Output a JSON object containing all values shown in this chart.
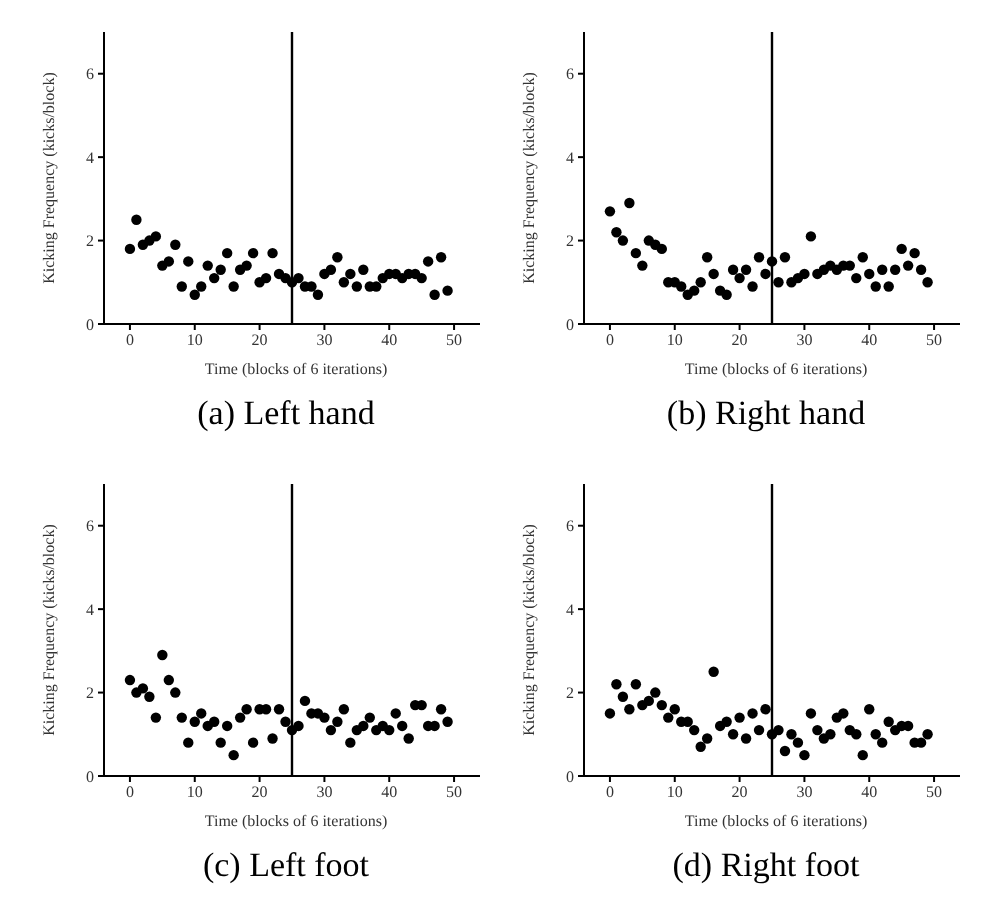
{
  "chart_data": [
    {
      "type": "scatter",
      "title": "(a) Left hand",
      "xlabel": "Time (blocks of 6 iterations)",
      "ylabel": "Kicking Frequency (kicks/block)",
      "x": [
        0,
        1,
        2,
        3,
        4,
        5,
        6,
        7,
        8,
        9,
        10,
        11,
        12,
        13,
        14,
        15,
        16,
        17,
        18,
        19,
        20,
        21,
        22,
        23,
        24,
        25,
        26,
        27,
        28,
        29,
        30,
        31,
        32,
        33,
        34,
        35,
        36,
        37,
        38,
        39,
        40,
        41,
        42,
        43,
        44,
        45,
        46,
        47,
        48,
        49
      ],
      "series": [
        {
          "color": "#000000",
          "values": [
            1.8,
            2.5,
            1.9,
            2.0,
            2.1,
            1.4,
            1.5,
            1.9,
            0.9,
            1.5,
            0.7,
            0.9,
            1.4,
            1.1,
            1.3,
            1.7,
            0.9,
            1.3,
            1.4,
            1.7,
            1.0,
            1.1,
            1.7,
            1.2,
            1.1,
            1.0,
            1.1,
            0.9,
            0.9,
            0.7,
            1.2,
            1.3,
            1.6,
            1.0,
            1.2,
            0.9,
            1.3,
            0.9,
            0.9,
            1.1,
            1.2,
            1.2,
            1.1,
            1.2,
            1.2,
            1.1,
            1.5,
            0.7,
            1.6,
            0.8
          ]
        }
      ],
      "xlim": [
        -4,
        54
      ],
      "xticks": [
        0,
        10,
        20,
        30,
        40,
        50
      ],
      "ylim": [
        0,
        7
      ],
      "yticks": [
        0,
        2,
        4,
        6
      ],
      "ref_lines": [
        {
          "axis": "x",
          "value": 25,
          "color": "#000000"
        }
      ],
      "marker": "circle",
      "grid": false,
      "legend": false
    },
    {
      "type": "scatter",
      "title": "(b) Right hand",
      "xlabel": "Time (blocks of 6 iterations)",
      "ylabel": "Kicking Frequency (kicks/block)",
      "x": [
        0,
        1,
        2,
        3,
        4,
        5,
        6,
        7,
        8,
        9,
        10,
        11,
        12,
        13,
        14,
        15,
        16,
        17,
        18,
        19,
        20,
        21,
        22,
        23,
        24,
        25,
        26,
        27,
        28,
        29,
        30,
        31,
        32,
        33,
        34,
        35,
        36,
        37,
        38,
        39,
        40,
        41,
        42,
        43,
        44,
        45,
        46,
        47,
        48,
        49
      ],
      "series": [
        {
          "color": "#000000",
          "values": [
            2.7,
            2.2,
            2.0,
            2.9,
            1.7,
            1.4,
            2.0,
            1.9,
            1.8,
            1.0,
            1.0,
            0.9,
            0.7,
            0.8,
            1.0,
            1.6,
            1.2,
            0.8,
            0.7,
            1.3,
            1.1,
            1.3,
            0.9,
            1.6,
            1.2,
            1.5,
            1.0,
            1.6,
            1.0,
            1.1,
            1.2,
            2.1,
            1.2,
            1.3,
            1.4,
            1.3,
            1.4,
            1.4,
            1.1,
            1.6,
            1.2,
            0.9,
            1.3,
            0.9,
            1.3,
            1.8,
            1.4,
            1.7,
            1.3,
            1.0
          ]
        }
      ],
      "xlim": [
        -4,
        54
      ],
      "xticks": [
        0,
        10,
        20,
        30,
        40,
        50
      ],
      "ylim": [
        0,
        7
      ],
      "yticks": [
        0,
        2,
        4,
        6
      ],
      "ref_lines": [
        {
          "axis": "x",
          "value": 25,
          "color": "#000000"
        }
      ],
      "marker": "circle",
      "grid": false,
      "legend": false
    },
    {
      "type": "scatter",
      "title": "(c) Left foot",
      "xlabel": "Time (blocks of 6 iterations)",
      "ylabel": "Kicking Frequency (kicks/block)",
      "x": [
        0,
        1,
        2,
        3,
        4,
        5,
        6,
        7,
        8,
        9,
        10,
        11,
        12,
        13,
        14,
        15,
        16,
        17,
        18,
        19,
        20,
        21,
        22,
        23,
        24,
        25,
        26,
        27,
        28,
        29,
        30,
        31,
        32,
        33,
        34,
        35,
        36,
        37,
        38,
        39,
        40,
        41,
        42,
        43,
        44,
        45,
        46,
        47,
        48,
        49
      ],
      "series": [
        {
          "color": "#000000",
          "values": [
            2.3,
            2.0,
            2.1,
            1.9,
            1.4,
            2.9,
            2.3,
            2.0,
            1.4,
            0.8,
            1.3,
            1.5,
            1.2,
            1.3,
            0.8,
            1.2,
            0.5,
            1.4,
            1.6,
            0.8,
            1.6,
            1.6,
            0.9,
            1.6,
            1.3,
            1.1,
            1.2,
            1.8,
            1.5,
            1.5,
            1.4,
            1.1,
            1.3,
            1.6,
            0.8,
            1.1,
            1.2,
            1.4,
            1.1,
            1.2,
            1.1,
            1.5,
            1.2,
            0.9,
            1.7,
            1.7,
            1.2,
            1.2,
            1.6,
            1.3
          ]
        }
      ],
      "xlim": [
        -4,
        54
      ],
      "xticks": [
        0,
        10,
        20,
        30,
        40,
        50
      ],
      "ylim": [
        0,
        7
      ],
      "yticks": [
        0,
        2,
        4,
        6
      ],
      "ref_lines": [
        {
          "axis": "x",
          "value": 25,
          "color": "#000000"
        }
      ],
      "marker": "circle",
      "grid": false,
      "legend": false
    },
    {
      "type": "scatter",
      "title": "(d) Right foot",
      "xlabel": "Time (blocks of 6 iterations)",
      "ylabel": "Kicking Frequency (kicks/block)",
      "x": [
        0,
        1,
        2,
        3,
        4,
        5,
        6,
        7,
        8,
        9,
        10,
        11,
        12,
        13,
        14,
        15,
        16,
        17,
        18,
        19,
        20,
        21,
        22,
        23,
        24,
        25,
        26,
        27,
        28,
        29,
        30,
        31,
        32,
        33,
        34,
        35,
        36,
        37,
        38,
        39,
        40,
        41,
        42,
        43,
        44,
        45,
        46,
        47,
        48,
        49
      ],
      "series": [
        {
          "color": "#000000",
          "values": [
            1.5,
            2.2,
            1.9,
            1.6,
            2.2,
            1.7,
            1.8,
            2.0,
            1.7,
            1.4,
            1.6,
            1.3,
            1.3,
            1.1,
            0.7,
            0.9,
            2.5,
            1.2,
            1.3,
            1.0,
            1.4,
            0.9,
            1.5,
            1.1,
            1.6,
            1.0,
            1.1,
            0.6,
            1.0,
            0.8,
            0.5,
            1.5,
            1.1,
            0.9,
            1.0,
            1.4,
            1.5,
            1.1,
            1.0,
            0.5,
            1.6,
            1.0,
            0.8,
            1.3,
            1.1,
            1.2,
            1.2,
            0.8,
            0.8,
            1.0
          ]
        }
      ],
      "xlim": [
        -4,
        54
      ],
      "xticks": [
        0,
        10,
        20,
        30,
        40,
        50
      ],
      "ylim": [
        0,
        7
      ],
      "yticks": [
        0,
        2,
        4,
        6
      ],
      "ref_lines": [
        {
          "axis": "x",
          "value": 25,
          "color": "#000000"
        }
      ],
      "marker": "circle",
      "grid": false,
      "legend": false
    }
  ]
}
